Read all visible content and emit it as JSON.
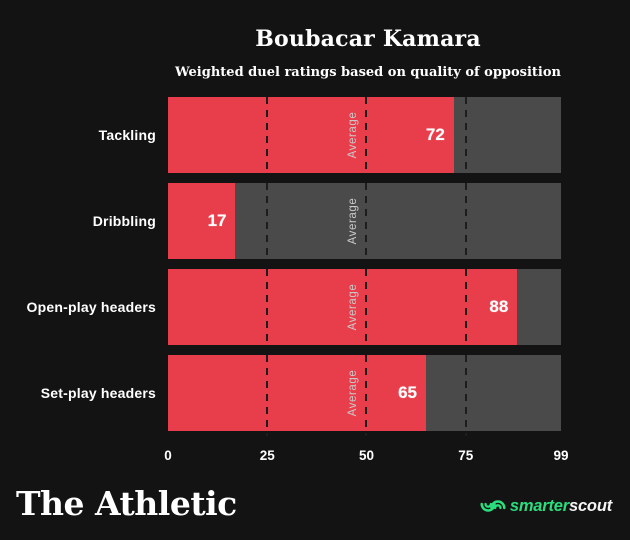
{
  "header": {
    "title": "Boubacar Kamara",
    "subtitle": "Weighted duel ratings based on quality of opposition"
  },
  "chart_data": {
    "type": "bar",
    "orientation": "horizontal",
    "title": "Boubacar Kamara",
    "subtitle": "Weighted duel ratings based on quality of opposition",
    "categories": [
      "Tackling",
      "Dribbling",
      "Open-play headers",
      "Set-play headers"
    ],
    "values": [
      72,
      17,
      88,
      65
    ],
    "xlim": [
      0,
      99
    ],
    "xticks": [
      "0",
      "25",
      "50",
      "75",
      "99"
    ],
    "gridlines": [
      25,
      50,
      75
    ],
    "gridline_label": "Average",
    "grid": "dashed-vertical",
    "legend": "none"
  },
  "footer": {
    "left_logo": "The Athletic",
    "right_logo": {
      "part1": "smarter",
      "part2": "scout"
    }
  },
  "colors": {
    "background": "#131313",
    "bar_red": "#e83e4b",
    "track_gray": "#4a4a4a",
    "dash": "#1d1d1d",
    "text_white": "#ffffff",
    "average_gray": "#c9c9c9",
    "brand_green": "#2ade7e"
  }
}
